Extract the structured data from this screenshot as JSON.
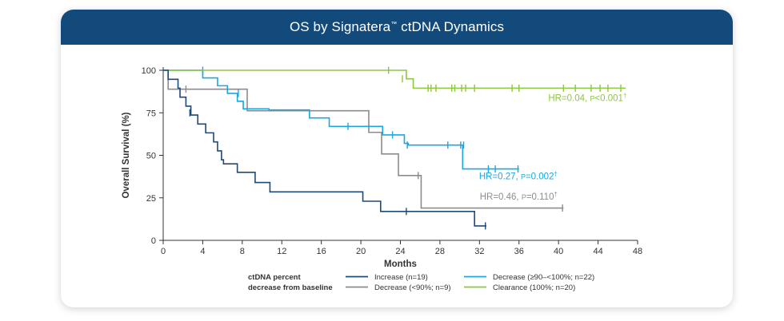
{
  "header": {
    "title": "OS by Signatera",
    "title_tm": "™",
    "title_suffix": " ctDNA Dynamics"
  },
  "colors": {
    "header_bg": "#124a7c",
    "increase": "#1d4b78",
    "decrease_lt90": "#8c8c8c",
    "decrease_90_100": "#1ba7df",
    "clearance": "#8dc63f"
  },
  "chart_data": {
    "type": "line",
    "subtype": "kaplan-meier step",
    "title": "",
    "xlabel": "Months",
    "ylabel": "Overall Survival (%)",
    "xlim": [
      0,
      48
    ],
    "ylim": [
      0,
      100
    ],
    "xticks": [
      0,
      4,
      8,
      12,
      16,
      20,
      24,
      28,
      32,
      36,
      40,
      44,
      48
    ],
    "yticks": [
      0,
      25,
      50,
      75,
      100
    ],
    "grid": false,
    "legend_position": "bottom",
    "legend_title": [
      "ctDNA percent",
      "decrease from baseline"
    ],
    "series": [
      {
        "name": "Increase (n=19)",
        "color_key": "increase",
        "steps": [
          [
            0,
            100
          ],
          [
            0.5,
            94.7
          ],
          [
            1.5,
            89.5
          ],
          [
            1.7,
            84.2
          ],
          [
            2.3,
            78.9
          ],
          [
            2.8,
            73.7
          ],
          [
            3.5,
            68.4
          ],
          [
            4.3,
            63.2
          ],
          [
            5.1,
            57.9
          ],
          [
            5.5,
            52.6
          ],
          [
            5.9,
            47.4
          ],
          [
            6.1,
            45
          ],
          [
            7.5,
            40
          ],
          [
            9.3,
            34
          ],
          [
            10.8,
            28.5
          ],
          [
            20.2,
            23
          ],
          [
            22,
            17
          ],
          [
            31.5,
            8.5
          ],
          [
            32.7,
            8.5
          ]
        ],
        "censor": [
          [
            2.7,
            75
          ],
          [
            24.6,
            17
          ],
          [
            32.6,
            8.5
          ]
        ]
      },
      {
        "name": "Decrease (<90%; n=9)",
        "color_key": "decrease_lt90",
        "steps": [
          [
            0,
            100
          ],
          [
            0.5,
            88.9
          ],
          [
            8.5,
            76.2
          ],
          [
            20.8,
            63.5
          ],
          [
            22.1,
            50.8
          ],
          [
            23.8,
            38.1
          ],
          [
            26.1,
            19
          ],
          [
            40.5,
            19
          ]
        ],
        "censor": [
          [
            2.3,
            88.9
          ],
          [
            25.8,
            38.1
          ],
          [
            40.4,
            19
          ]
        ]
      },
      {
        "name": "Decrease (≥90–<100%; n=22)",
        "color_key": "decrease_90_100",
        "steps": [
          [
            0,
            100
          ],
          [
            4,
            95.5
          ],
          [
            5.5,
            90.9
          ],
          [
            6.5,
            86.4
          ],
          [
            7.5,
            81.8
          ],
          [
            8.1,
            77.3
          ],
          [
            10.7,
            76.7
          ],
          [
            14.8,
            72
          ],
          [
            16.8,
            67
          ],
          [
            22.2,
            62
          ],
          [
            24.4,
            57
          ],
          [
            24.8,
            56
          ],
          [
            30.3,
            42
          ],
          [
            36,
            42
          ]
        ],
        "censor": [
          [
            4,
            100
          ],
          [
            7.6,
            86.4
          ],
          [
            18.7,
            67
          ],
          [
            23.2,
            62
          ],
          [
            24.7,
            56
          ],
          [
            28.8,
            56
          ],
          [
            30.1,
            56
          ],
          [
            30.4,
            56
          ],
          [
            32.9,
            42
          ],
          [
            33.6,
            42
          ],
          [
            35.9,
            42
          ]
        ],
        "hr": "HR=0.27,",
        "p_prefix": "P",
        "p_value": "=0.002",
        "dagger": "†"
      },
      {
        "name": "Clearance (100%; n=20)",
        "color_key": "clearance",
        "steps": [
          [
            0,
            100
          ],
          [
            22.8,
            100
          ],
          [
            24.6,
            95
          ],
          [
            25.3,
            89.5
          ],
          [
            46.8,
            89.5
          ]
        ],
        "censor": [
          [
            22.8,
            100
          ],
          [
            24.2,
            95
          ],
          [
            26.8,
            89.5
          ],
          [
            27.1,
            89.5
          ],
          [
            27.6,
            89.5
          ],
          [
            29.2,
            89.5
          ],
          [
            29.5,
            89.5
          ],
          [
            30.2,
            89.5
          ],
          [
            30.6,
            89.5
          ],
          [
            31.5,
            89.5
          ],
          [
            35.3,
            89.5
          ],
          [
            36,
            89.5
          ],
          [
            40.5,
            89.5
          ],
          [
            41.7,
            89.5
          ],
          [
            43.3,
            89.5
          ],
          [
            44.2,
            89.5
          ],
          [
            45,
            89.5
          ],
          [
            46.3,
            89.5
          ]
        ]
      }
    ],
    "hr_labels": [
      {
        "series": 3,
        "hr": "HR=0.04,",
        "p_prefix": "P",
        "p_value": "<0.001",
        "dagger": "†",
        "anchor": [
          46.9,
          82
        ]
      },
      {
        "series": 2,
        "hr": "HR=0.27,",
        "p_prefix": "P",
        "p_value": "=0.002",
        "dagger": "†",
        "anchor": [
          39.9,
          36
        ]
      },
      {
        "series": 1,
        "hr": "HR=0.46,",
        "p_prefix": "P",
        "p_value": "=0.110",
        "dagger": "†",
        "anchor": [
          39.9,
          24
        ]
      }
    ]
  }
}
